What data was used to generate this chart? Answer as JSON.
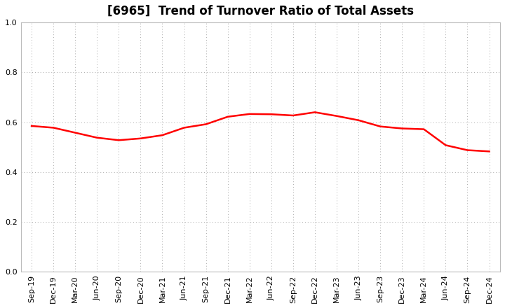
{
  "title": "[6965]  Trend of Turnover Ratio of Total Assets",
  "x_labels": [
    "Sep-19",
    "Dec-19",
    "Mar-20",
    "Jun-20",
    "Sep-20",
    "Dec-20",
    "Mar-21",
    "Jun-21",
    "Sep-21",
    "Dec-21",
    "Mar-22",
    "Jun-22",
    "Sep-22",
    "Dec-22",
    "Mar-23",
    "Jun-23",
    "Sep-23",
    "Dec-23",
    "Mar-24",
    "Jun-24",
    "Sep-24",
    "Dec-24"
  ],
  "y_values": [
    0.585,
    0.578,
    0.558,
    0.538,
    0.528,
    0.535,
    0.548,
    0.578,
    0.592,
    0.622,
    0.633,
    0.632,
    0.627,
    0.64,
    0.625,
    0.608,
    0.583,
    0.575,
    0.572,
    0.508,
    0.488,
    0.483
  ],
  "ylim": [
    0.0,
    1.0
  ],
  "yticks": [
    0.0,
    0.2,
    0.4,
    0.6,
    0.8,
    1.0
  ],
  "line_color": "#FF0000",
  "line_width": 1.8,
  "bg_color": "#FFFFFF",
  "plot_bg_color": "#FFFFFF",
  "grid_color": "#AAAAAA",
  "title_fontsize": 12,
  "tick_fontsize": 8
}
